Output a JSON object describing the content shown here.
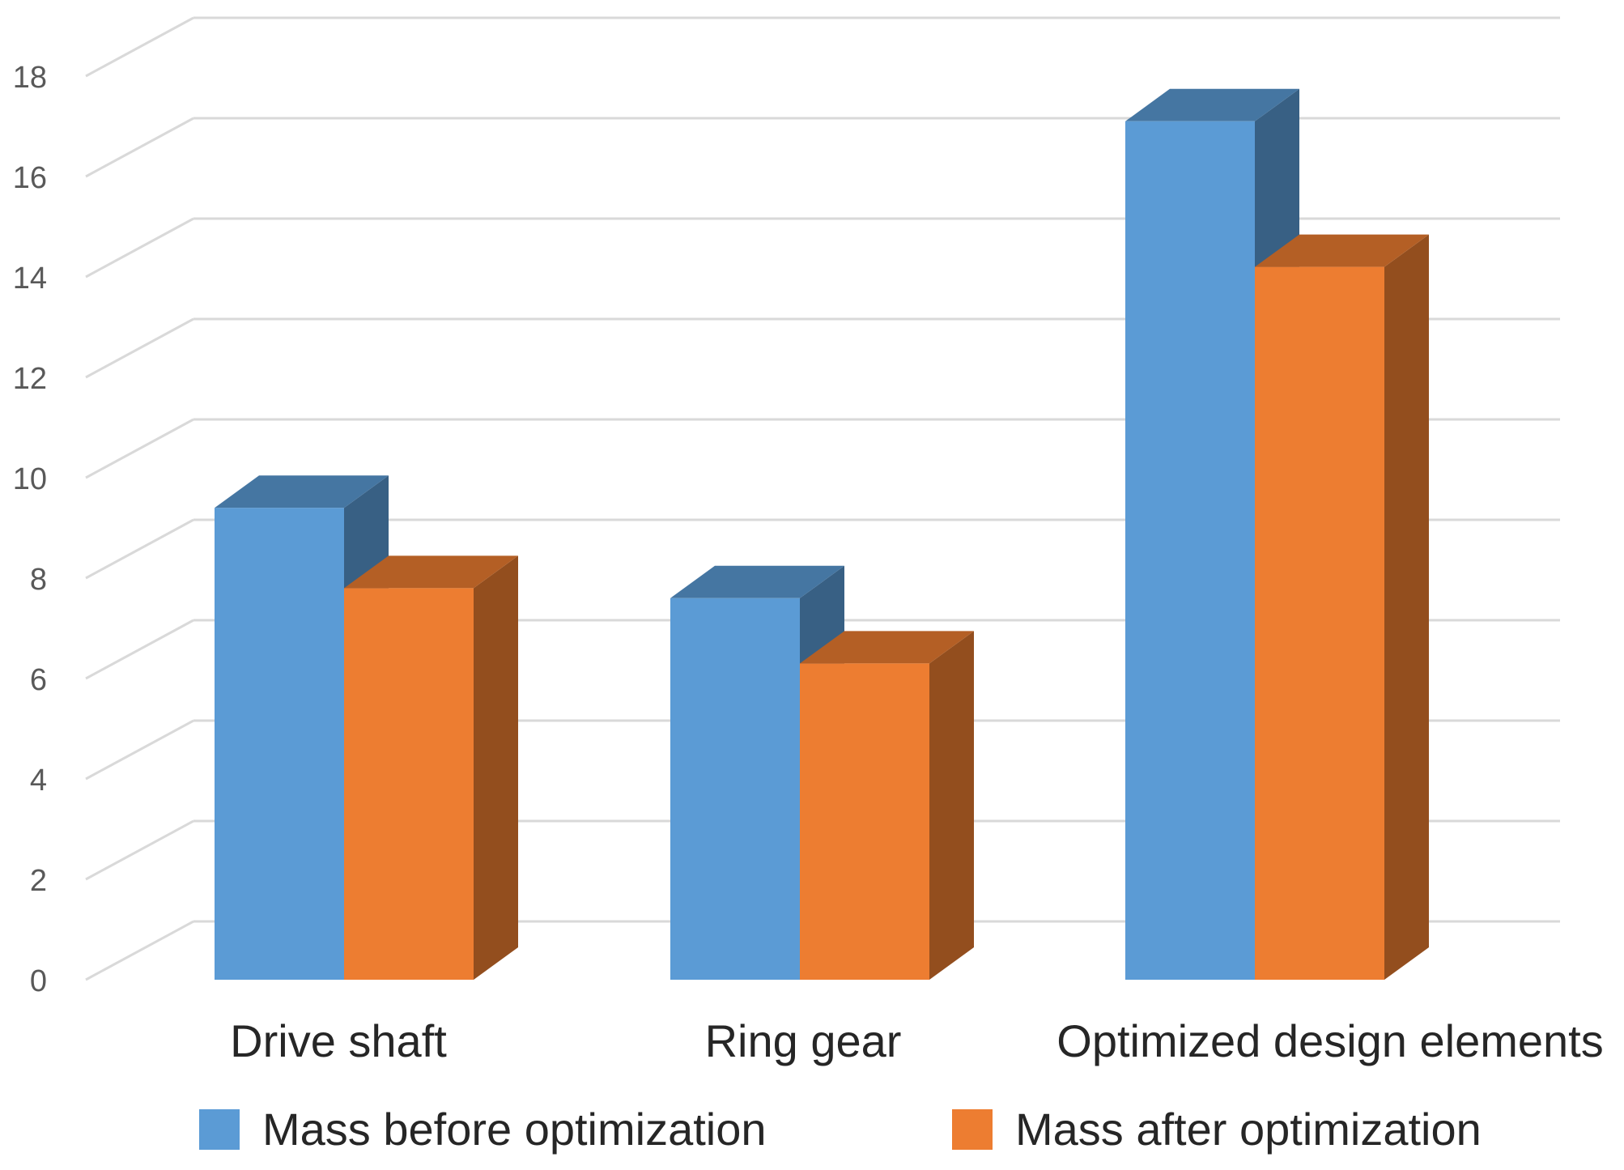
{
  "chart_data": {
    "type": "bar",
    "subtype": "3d-clustered-column",
    "title": "",
    "xlabel": "",
    "ylabel": "",
    "categories": [
      "Drive shaft",
      "Ring gear",
      "Optimized design elements"
    ],
    "series": [
      {
        "name": "Mass before optimization",
        "values": [
          9.4,
          7.6,
          17.1
        ],
        "color": "#5B9BD5"
      },
      {
        "name": "Mass after optimization",
        "values": [
          7.8,
          6.3,
          14.2
        ],
        "color": "#ED7D31"
      }
    ],
    "ylim": [
      0,
      18
    ],
    "yticks": [
      0,
      2,
      4,
      6,
      8,
      10,
      12,
      14,
      16,
      18
    ],
    "grid": true,
    "legend": "bottom"
  }
}
